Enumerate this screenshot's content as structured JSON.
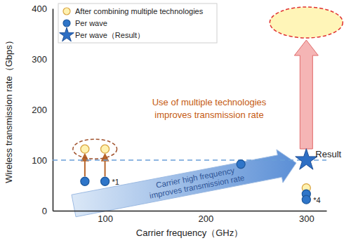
{
  "chart_data": {
    "type": "scatter",
    "x_label": "Carrier frequency（GHz）",
    "y_label": "Wireless transmission rate（Gbps）",
    "xlim": [
      48,
      320
    ],
    "xticks": [
      100,
      200,
      300
    ],
    "ylim": [
      0,
      400
    ],
    "yticks": [
      0,
      100,
      200,
      300,
      400
    ],
    "grid": false,
    "legend": "upper left",
    "reference_line": 100,
    "series": [
      {
        "name": "After combining multiple technologies",
        "color": "#fff2b0",
        "marker": "circle",
        "x": [
          80,
          100,
          300
        ],
        "values": [
          122,
          122,
          45
        ]
      },
      {
        "name": "Per wave",
        "color": "#2e75c9",
        "marker": "circle",
        "x": [
          80,
          100,
          235,
          300,
          300
        ],
        "values": [
          58,
          58,
          92,
          33,
          22
        ],
        "point_labels": [
          null,
          "*1",
          null,
          null,
          "*4"
        ]
      },
      {
        "name": "Per wave（Result）",
        "color": "#2e6fc4",
        "marker": "star",
        "x": [
          300
        ],
        "values": [
          100
        ],
        "point_labels": [
          "Result"
        ]
      }
    ],
    "annotations": [
      {
        "text": [
          "Use of multiple technologies",
          "improves transmission rate"
        ],
        "color": "#c55a11"
      },
      {
        "text": [
          "Carrier high frequency",
          "improves transmission rate"
        ],
        "color": "#2f5597"
      }
    ]
  }
}
